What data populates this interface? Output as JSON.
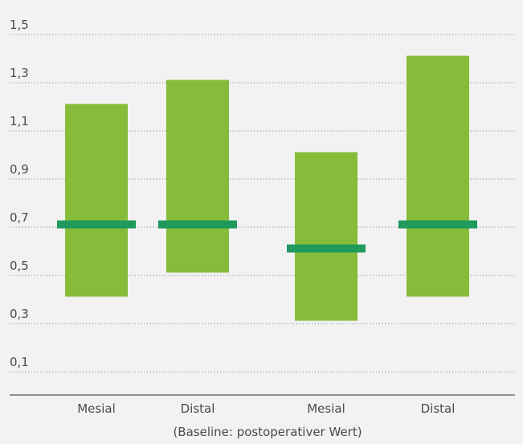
{
  "chart_data": {
    "type": "bar",
    "subtype": "floating-range-with-marker",
    "categories": [
      "Mesial",
      "Distal",
      "Mesial",
      "Distal"
    ],
    "series": [
      {
        "role": "range",
        "low": [
          0.4,
          0.5,
          0.3,
          0.4
        ],
        "high": [
          1.2,
          1.3,
          1.0,
          1.4
        ]
      },
      {
        "role": "marker",
        "values": [
          0.7,
          0.7,
          0.6,
          0.7
        ]
      }
    ],
    "ytick_labels": [
      "1,5",
      "1,3",
      "1,1",
      "0,9",
      "0,7",
      "0,5",
      "0,3",
      "0,1"
    ],
    "ytick_values": [
      1.5,
      1.3,
      1.1,
      0.9,
      0.7,
      0.5,
      0.3,
      0.1
    ],
    "ylim": [
      -0.01,
      1.5
    ],
    "xlabel": "(Baseline: postoperativer Wert)",
    "ylabel": "",
    "title": "",
    "grid": "dotted horizontal",
    "colors": {
      "range": "#86bc3a",
      "marker": "#1f9a5c",
      "grid": "#8a8a8a",
      "axis": "#555555",
      "text": "#4a4a4a",
      "background": "#f2f2f2"
    }
  }
}
